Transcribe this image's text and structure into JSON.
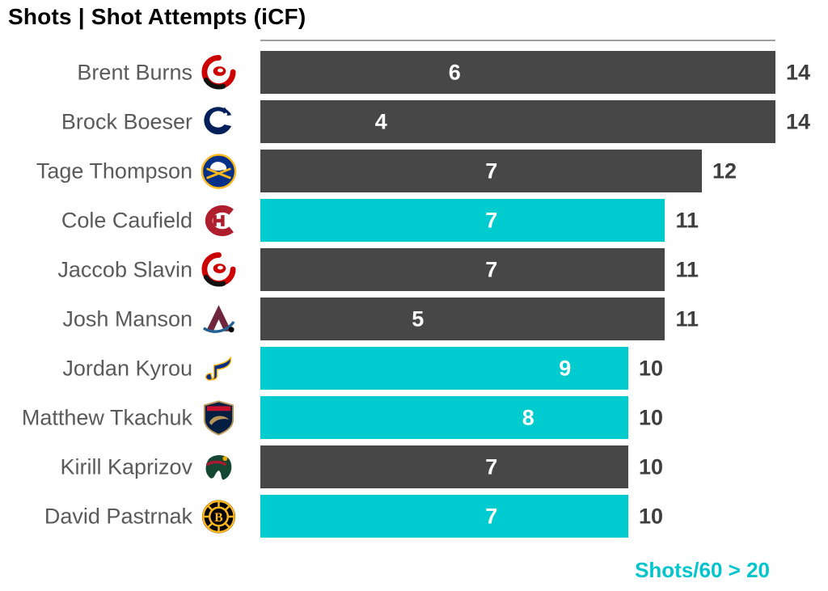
{
  "title": "Shots | Shot Attempts (iCF)",
  "footer": {
    "note": "Shots/60 > 20"
  },
  "colors": {
    "bar_default": "#474747",
    "bar_highlight": "#00CBCE",
    "name_text": "#5A5A5A",
    "total_text": "#3F3F3F",
    "inner_label_text": "#FFFFFF",
    "footer_text": "#00C5CC",
    "spine_line": "#A0A0A0"
  },
  "players": [
    {
      "name": "Brent Burns",
      "team": "Carolina Hurricanes",
      "team_logo": "carolina-hurricanes-logo",
      "shots": 6,
      "attempts": 14,
      "highlight": false
    },
    {
      "name": "Brock Boeser",
      "team": "Vancouver Canucks",
      "team_logo": "vancouver-canucks-logo",
      "shots": 4,
      "attempts": 14,
      "highlight": false
    },
    {
      "name": "Tage Thompson",
      "team": "Buffalo Sabres",
      "team_logo": "buffalo-sabres-logo",
      "shots": 7,
      "attempts": 12,
      "highlight": false
    },
    {
      "name": "Cole Caufield",
      "team": "Montreal Canadiens",
      "team_logo": "montreal-canadiens-logo",
      "shots": 7,
      "attempts": 11,
      "highlight": true
    },
    {
      "name": "Jaccob Slavin",
      "team": "Carolina Hurricanes",
      "team_logo": "carolina-hurricanes-logo",
      "shots": 7,
      "attempts": 11,
      "highlight": false
    },
    {
      "name": "Josh Manson",
      "team": "Colorado Avalanche",
      "team_logo": "colorado-avalanche-logo",
      "shots": 5,
      "attempts": 11,
      "highlight": false
    },
    {
      "name": "Jordan Kyrou",
      "team": "St. Louis Blues",
      "team_logo": "st-louis-blues-logo",
      "shots": 9,
      "attempts": 10,
      "highlight": true
    },
    {
      "name": "Matthew Tkachuk",
      "team": "Florida Panthers",
      "team_logo": "florida-panthers-logo",
      "shots": 8,
      "attempts": 10,
      "highlight": true
    },
    {
      "name": "Kirill Kaprizov",
      "team": "Minnesota Wild",
      "team_logo": "minnesota-wild-logo",
      "shots": 7,
      "attempts": 10,
      "highlight": false
    },
    {
      "name": "David Pastrnak",
      "team": "Boston Bruins",
      "team_logo": "boston-bruins-logo",
      "shots": 7,
      "attempts": 10,
      "highlight": true
    }
  ],
  "chart_data": {
    "type": "bar",
    "orientation": "horizontal",
    "title": "Shots | Shot Attempts (iCF)",
    "categories": [
      "Brent Burns",
      "Brock Boeser",
      "Tage Thompson",
      "Cole Caufield",
      "Jaccob Slavin",
      "Josh Manson",
      "Jordan Kyrou",
      "Matthew Tkachuk",
      "Kirill Kaprizov",
      "David Pastrnak"
    ],
    "series": [
      {
        "name": "Shots",
        "values": [
          6,
          4,
          7,
          7,
          7,
          5,
          9,
          8,
          7,
          7
        ]
      },
      {
        "name": "Shot Attempts (iCF)",
        "values": [
          14,
          14,
          12,
          11,
          11,
          11,
          10,
          10,
          10,
          10
        ]
      }
    ],
    "xlim": [
      0,
      14
    ],
    "grid": false,
    "bar_length_metric": "Shot Attempts (iCF)",
    "inner_label_metric": "Shots",
    "highlighted_rows": [
      "Cole Caufield",
      "Jordan Kyrou",
      "Matthew Tkachuk",
      "David Pastrnak"
    ],
    "legend_note": "Shots/60 > 20",
    "legend_position": "bottom-right"
  }
}
